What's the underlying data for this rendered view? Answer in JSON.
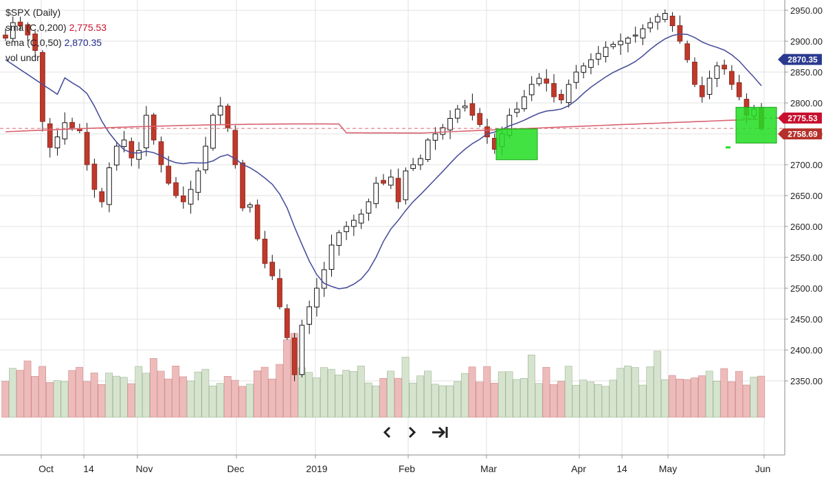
{
  "legend": {
    "title": "$SPX (Daily)",
    "sma_label": "sma (C,0,200)",
    "sma_value": "2,775.53",
    "sma_color": "#c8102e",
    "ema_label": "ema (C,0,50)",
    "ema_value": "2,870.35",
    "ema_color": "#1f2a8a",
    "vol_label": "vol undr"
  },
  "tags": {
    "ema_tag": "2870.35",
    "sma_tag": "2775.53",
    "last_tag": "2758.69"
  },
  "controls": {
    "prev_icon": "chevron-left-icon",
    "next_icon": "chevron-right-icon",
    "end_icon": "skip-to-end-icon"
  },
  "colors": {
    "up_candle": "#ffffff",
    "down_candle": "#c0392b",
    "sma_line": "#d9606e",
    "ema_line": "#4a4f9c",
    "highlight": "#22dd22",
    "vol_up": "#d6e4cf",
    "vol_down": "#eebbbb"
  },
  "chart_data": {
    "type": "candlestick",
    "title": "$SPX (Daily)",
    "x_ticks": [
      "Oct",
      "14",
      "Nov",
      "Dec",
      "2019",
      "Feb",
      "Mar",
      "Apr",
      "14",
      "May",
      "Jun"
    ],
    "y_ticks": [
      "2950.00",
      "2900.00",
      "2850.00",
      "2800.00",
      "2750.00",
      "2700.00",
      "2650.00",
      "2600.00",
      "2550.00",
      "2500.00",
      "2450.00",
      "2400.00",
      "2350.00"
    ],
    "ylim": [
      2345,
      2960
    ],
    "approx_close_path": [
      2905,
      2930,
      2925,
      2910,
      2885,
      2770,
      2728,
      2745,
      2768,
      2760,
      2755,
      2700,
      2660,
      2640,
      2695,
      2730,
      2740,
      2711,
      2723,
      2780,
      2740,
      2700,
      2670,
      2650,
      2640,
      2660,
      2690,
      2730,
      2780,
      2795,
      2760,
      2700,
      2630,
      2635,
      2580,
      2540,
      2520,
      2470,
      2420,
      2360,
      2440,
      2470,
      2500,
      2530,
      2570,
      2590,
      2600,
      2610,
      2620,
      2640,
      2670,
      2670,
      2680,
      2640,
      2690,
      2700,
      2710,
      2740,
      2750,
      2760,
      2775,
      2790,
      2795,
      2780,
      2765,
      2745,
      2725,
      2750,
      2780,
      2790,
      2810,
      2830,
      2840,
      2832,
      2810,
      2805,
      2830,
      2850,
      2860,
      2870,
      2880,
      2890,
      2895,
      2900,
      2905,
      2910,
      2920,
      2930,
      2940,
      2945,
      2925,
      2900,
      2870,
      2830,
      2810,
      2840,
      2860,
      2855,
      2830,
      2810,
      2780,
      2790,
      2758
    ],
    "sma200": {
      "name": "sma (C,0,200)",
      "last": 2775.53
    },
    "ema50": {
      "name": "ema (C,0,50)",
      "last": 2870.35
    },
    "last_close": 2758.69,
    "highlight_zones": [
      {
        "x_label": "Mar",
        "y_range": [
          2708,
          2758
        ]
      },
      {
        "x_label": "Jun",
        "y_range": [
          2735,
          2793
        ]
      }
    ]
  }
}
